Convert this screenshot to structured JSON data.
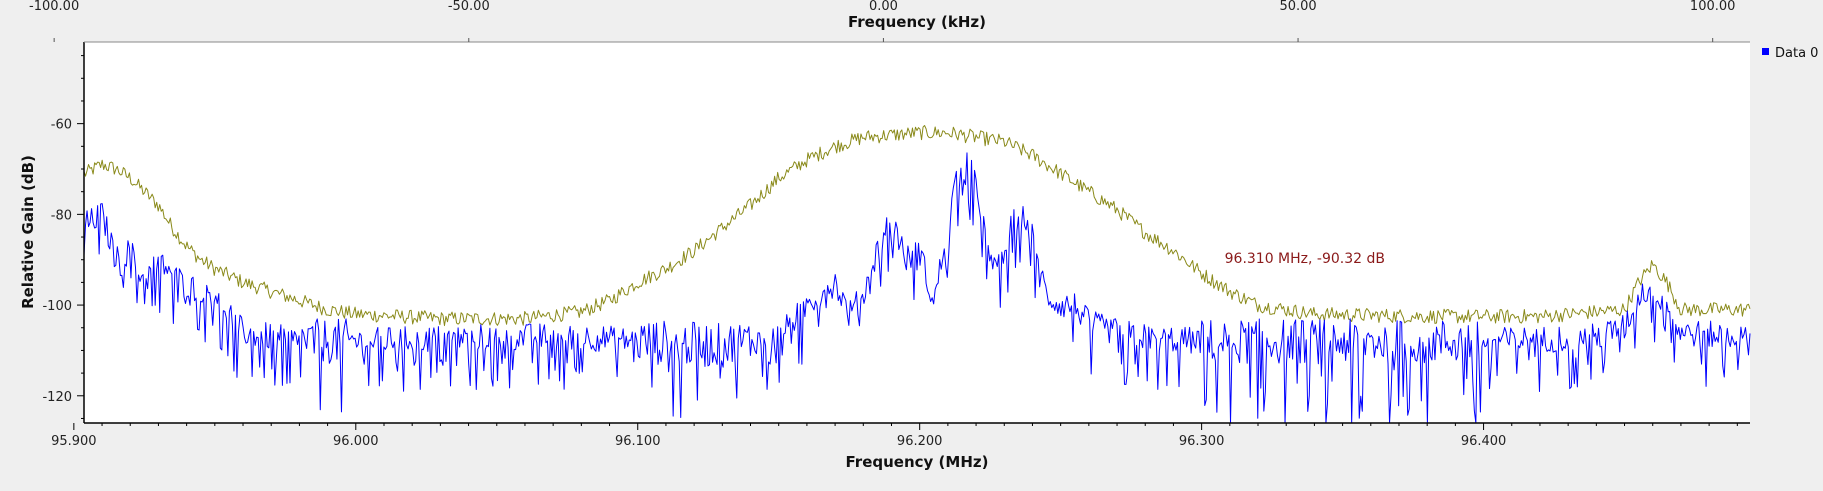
{
  "chart_data": {
    "type": "line",
    "title": "",
    "grid": false,
    "legend_position": "top-right",
    "xlabel": "Frequency (MHz)",
    "x2label": "Frequency (kHz)",
    "ylabel": "Relative Gain (dB)",
    "xlim": [
      95.9036,
      96.4945
    ],
    "x2lim": [
      -96.4,
      104.5
    ],
    "ylim": [
      -126,
      -42
    ],
    "x_ticks": [
      {
        "value": 95.9,
        "label": "95.900"
      },
      {
        "value": 96.0,
        "label": "96.000"
      },
      {
        "value": 96.1,
        "label": "96.100"
      },
      {
        "value": 96.2,
        "label": "96.200"
      },
      {
        "value": 96.3,
        "label": "96.300"
      },
      {
        "value": 96.4,
        "label": "96.400"
      }
    ],
    "x2_ticks": [
      {
        "value": -100,
        "label": "-100.00"
      },
      {
        "value": -50,
        "label": "-50.00"
      },
      {
        "value": 0,
        "label": "0.00"
      },
      {
        "value": 50,
        "label": "50.00"
      },
      {
        "value": 100,
        "label": "100.00"
      }
    ],
    "y_ticks": [
      {
        "value": -60,
        "label": "-60"
      },
      {
        "value": -80,
        "label": "-80"
      },
      {
        "value": -100,
        "label": "-100"
      },
      {
        "value": -120,
        "label": "-120"
      }
    ],
    "legend": [
      {
        "label": "Data 0",
        "color": "#0000ff"
      }
    ],
    "marker": {
      "text": "96.310 MHz, -90.32 dB",
      "x": 96.31,
      "y": -90.32,
      "color": "#8b1a1a"
    },
    "series": [
      {
        "color": "#0000ff",
        "kind": "noise",
        "noise_floor": -108,
        "noise_amp": 10,
        "points": [
          [
            95.905,
            -82
          ],
          [
            95.91,
            -80
          ],
          [
            95.915,
            -90
          ],
          [
            95.92,
            -88
          ],
          [
            95.925,
            -95
          ],
          [
            95.93,
            -90
          ],
          [
            95.94,
            -96
          ],
          [
            95.95,
            -97
          ],
          [
            95.96,
            -106
          ],
          [
            95.98,
            -108
          ],
          [
            96.0,
            -108
          ],
          [
            96.05,
            -107
          ],
          [
            96.08,
            -107
          ],
          [
            96.1,
            -108
          ],
          [
            96.13,
            -109
          ],
          [
            96.15,
            -107
          ],
          [
            96.16,
            -100
          ],
          [
            96.17,
            -95
          ],
          [
            96.175,
            -102
          ],
          [
            96.18,
            -98
          ],
          [
            96.185,
            -88
          ],
          [
            96.19,
            -80
          ],
          [
            96.195,
            -90
          ],
          [
            96.2,
            -88
          ],
          [
            96.205,
            -100
          ],
          [
            96.21,
            -82
          ],
          [
            96.215,
            -66
          ],
          [
            96.22,
            -72
          ],
          [
            96.225,
            -92
          ],
          [
            96.23,
            -88
          ],
          [
            96.235,
            -78
          ],
          [
            96.24,
            -85
          ],
          [
            96.245,
            -98
          ],
          [
            96.25,
            -100
          ],
          [
            96.255,
            -100
          ],
          [
            96.26,
            -104
          ],
          [
            96.27,
            -106
          ],
          [
            96.28,
            -107
          ],
          [
            96.3,
            -108
          ],
          [
            96.35,
            -108
          ],
          [
            96.4,
            -108
          ],
          [
            96.44,
            -107
          ],
          [
            96.45,
            -105
          ],
          [
            96.455,
            -98
          ],
          [
            96.46,
            -96
          ],
          [
            96.465,
            -100
          ],
          [
            96.47,
            -106
          ],
          [
            96.49,
            -107
          ],
          [
            96.494,
            -108
          ]
        ]
      },
      {
        "color": "#8a8a1a",
        "kind": "envelope",
        "noise_amp": 1.6,
        "points": [
          [
            95.904,
            -71
          ],
          [
            95.91,
            -69
          ],
          [
            95.915,
            -70
          ],
          [
            95.92,
            -72
          ],
          [
            95.925,
            -75
          ],
          [
            95.93,
            -78
          ],
          [
            95.935,
            -83
          ],
          [
            95.94,
            -87
          ],
          [
            95.945,
            -90
          ],
          [
            95.95,
            -92
          ],
          [
            95.96,
            -95
          ],
          [
            95.97,
            -97
          ],
          [
            95.98,
            -99
          ],
          [
            95.99,
            -101
          ],
          [
            96.0,
            -102
          ],
          [
            96.03,
            -103
          ],
          [
            96.06,
            -103
          ],
          [
            96.08,
            -101.5
          ],
          [
            96.09,
            -99
          ],
          [
            96.1,
            -95
          ],
          [
            96.11,
            -92
          ],
          [
            96.12,
            -88
          ],
          [
            96.13,
            -83
          ],
          [
            96.14,
            -78
          ],
          [
            96.15,
            -72
          ],
          [
            96.16,
            -68
          ],
          [
            96.17,
            -65
          ],
          [
            96.18,
            -63
          ],
          [
            96.19,
            -62.5
          ],
          [
            96.2,
            -62
          ],
          [
            96.21,
            -62
          ],
          [
            96.22,
            -63
          ],
          [
            96.23,
            -64
          ],
          [
            96.24,
            -67
          ],
          [
            96.25,
            -71
          ],
          [
            96.26,
            -75
          ],
          [
            96.27,
            -79
          ],
          [
            96.28,
            -84
          ],
          [
            96.29,
            -88
          ],
          [
            96.3,
            -93
          ],
          [
            96.31,
            -97
          ],
          [
            96.32,
            -100
          ],
          [
            96.34,
            -102
          ],
          [
            96.38,
            -102.5
          ],
          [
            96.42,
            -102.5
          ],
          [
            96.45,
            -101
          ],
          [
            96.455,
            -95
          ],
          [
            96.46,
            -91
          ],
          [
            96.465,
            -95
          ],
          [
            96.47,
            -101
          ],
          [
            96.494,
            -101
          ]
        ]
      }
    ]
  }
}
